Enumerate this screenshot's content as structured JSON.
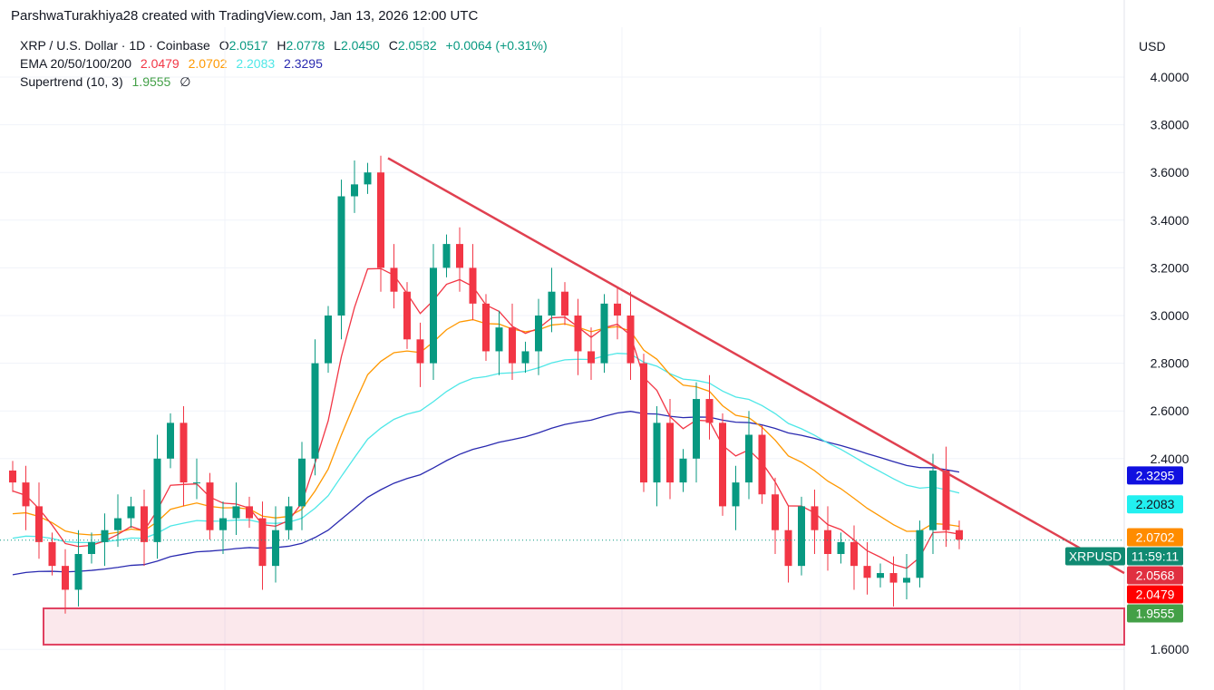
{
  "credit": "ParshwaTurakhiya28 created with TradingView.com, Jan 13, 2026 12:00 UTC",
  "legend": {
    "symbol": "XRP / U.S. Dollar · 1D · Coinbase",
    "o_label": "O",
    "o": "2.0517",
    "h_label": "H",
    "h": "2.0778",
    "l_label": "L",
    "l": "2.0450",
    "c_label": "C",
    "c": "2.0582",
    "change": "+0.0064 (+0.31%)",
    "ema_label": "EMA 20/50/100/200",
    "ema20": "2.0479",
    "ema50": "2.0702",
    "ema100": "2.2083",
    "ema200": "2.3295",
    "supertrend_label": "Supertrend (10, 3)",
    "supertrend": "1.9555",
    "supertrend_icon": "∅"
  },
  "chart_data": {
    "type": "candlestick",
    "currency": "USD",
    "ylim": [
      1.55,
      4.05
    ],
    "yticks": [
      "4.0000",
      "3.8000",
      "3.6000",
      "3.4000",
      "3.2000",
      "3.0000",
      "2.8000",
      "2.6000",
      "2.4000",
      "1.6000"
    ],
    "grid": true,
    "closes": [
      2.3,
      2.2,
      2.05,
      1.95,
      1.85,
      2.0,
      2.05,
      2.1,
      2.15,
      2.2,
      2.05,
      2.4,
      2.55,
      2.3,
      2.3,
      2.1,
      2.15,
      2.2,
      2.15,
      1.95,
      2.1,
      2.2,
      2.4,
      2.8,
      3.0,
      3.5,
      3.55,
      3.6,
      3.2,
      3.1,
      2.9,
      2.8,
      3.2,
      3.3,
      3.2,
      3.05,
      2.85,
      2.95,
      2.8,
      2.85,
      3.0,
      3.1,
      3.0,
      2.85,
      2.8,
      3.05,
      3.0,
      2.8,
      2.3,
      2.55,
      2.3,
      2.4,
      2.65,
      2.55,
      2.2,
      2.3,
      2.5,
      2.25,
      2.1,
      1.95,
      2.2,
      2.1,
      2.0,
      2.05,
      1.95,
      1.9,
      1.92,
      1.88,
      1.9,
      2.1,
      2.35,
      2.1,
      2.06
    ],
    "ema_colors": {
      "ema20": "#f23645",
      "ema50": "#ff9800",
      "ema100": "#4ee7e7",
      "ema200": "#2a2ab0"
    },
    "trendline": {
      "from": 3.66,
      "to": 1.92,
      "color": "#e04050"
    },
    "support_zone": {
      "top": 1.772,
      "bottom": 1.62,
      "color": "#e04060"
    },
    "last_price": 2.0582,
    "tags": [
      {
        "text": "2.3295",
        "price": 2.3295,
        "bg": "#1010e0",
        "fg": "#ffffff"
      },
      {
        "text": "2.2083",
        "price": 2.2083,
        "bg": "#22f0f0",
        "fg": "#131722"
      },
      {
        "text": "2.0702",
        "price": 2.0702,
        "bg": "#ff8c00",
        "fg": "#ffffff"
      },
      {
        "text": "11:59:11",
        "price": 2.0582,
        "bg": "#108a72",
        "fg": "#ffffff",
        "label": "XRPUSD"
      },
      {
        "text": "2.0568",
        "price": 2.0568,
        "bg": "#e03040",
        "fg": "#ffffff"
      },
      {
        "text": "2.0479",
        "price": 2.0479,
        "bg": "#ff0000",
        "fg": "#ffffff"
      },
      {
        "text": "1.9555",
        "price": 1.9555,
        "bg": "#43a047",
        "fg": "#ffffff"
      }
    ]
  }
}
